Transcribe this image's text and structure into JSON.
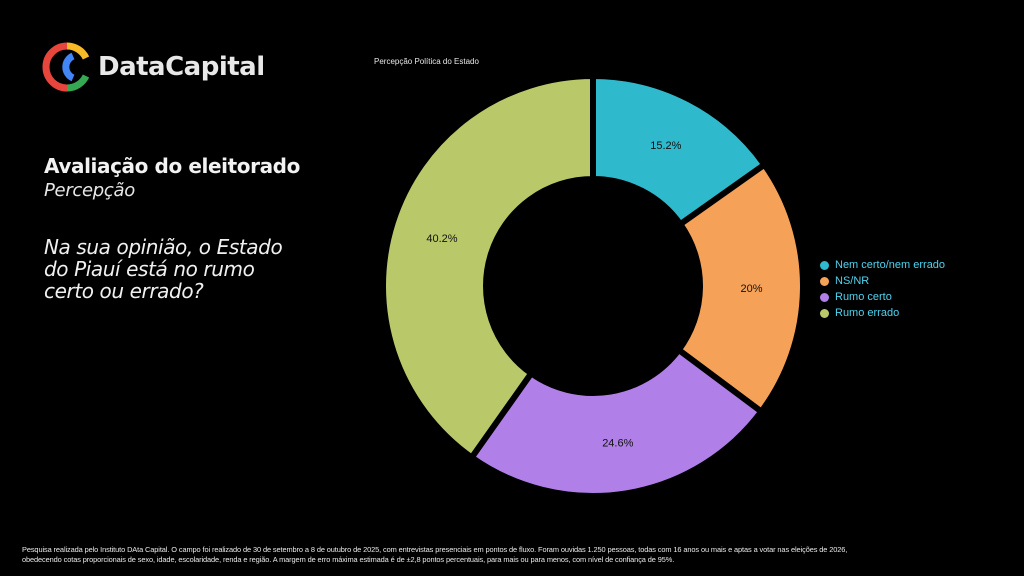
{
  "brand": {
    "name": "DataCapital"
  },
  "heading": {
    "title": "Avaliação do eleitorado",
    "subtitle": "Percepção",
    "question": "Na sua opinião, o Estado do Piauí está no rumo certo ou errado?"
  },
  "chart_data": {
    "type": "pie",
    "variant": "donut",
    "title": "Percepção Política do Estado",
    "categories": [
      "Nem certo/nem errado",
      "NS/NR",
      "Rumo certo",
      "Rumo errado"
    ],
    "values": [
      15.2,
      20,
      24.6,
      40.2
    ],
    "labels": [
      "15.2%",
      "20%",
      "24.6%",
      "40.2%"
    ],
    "colors": [
      "#2fb9cc",
      "#f5a258",
      "#b17fe8",
      "#b9c96a"
    ],
    "legend_position": "right"
  },
  "footer": {
    "line1": "Pesquisa realizada pelo Instituto DAta Capital. O campo foi realizado de 30 de setembro a 8 de outubro de 2025, com entrevistas presenciais em pontos de fluxo. Foram ouvidas 1.250 pessoas, todas com 16 anos ou mais e aptas a votar nas eleições de 2026,",
    "line2": "obedecendo cotas proporcionais de sexo, idade, escolaridade, renda e região. A margem de erro máxima estimada é de ±2,8 pontos percentuais, para mais ou para menos, com nível de confiança de 95%."
  }
}
